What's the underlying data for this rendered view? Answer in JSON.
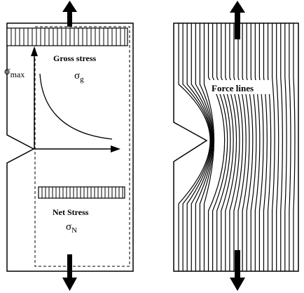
{
  "left_panel": {
    "gross_label": "Gross stress",
    "gross_symbol": "σ",
    "gross_subscript": "g",
    "max_symbol": "σ",
    "max_subscript": "max",
    "net_label": "Net Stress",
    "net_symbol": "σ",
    "net_subscript": "N"
  },
  "right_panel": {
    "force_label": "Force lines"
  },
  "colors": {
    "ink": "#000000",
    "background": "#ffffff"
  }
}
